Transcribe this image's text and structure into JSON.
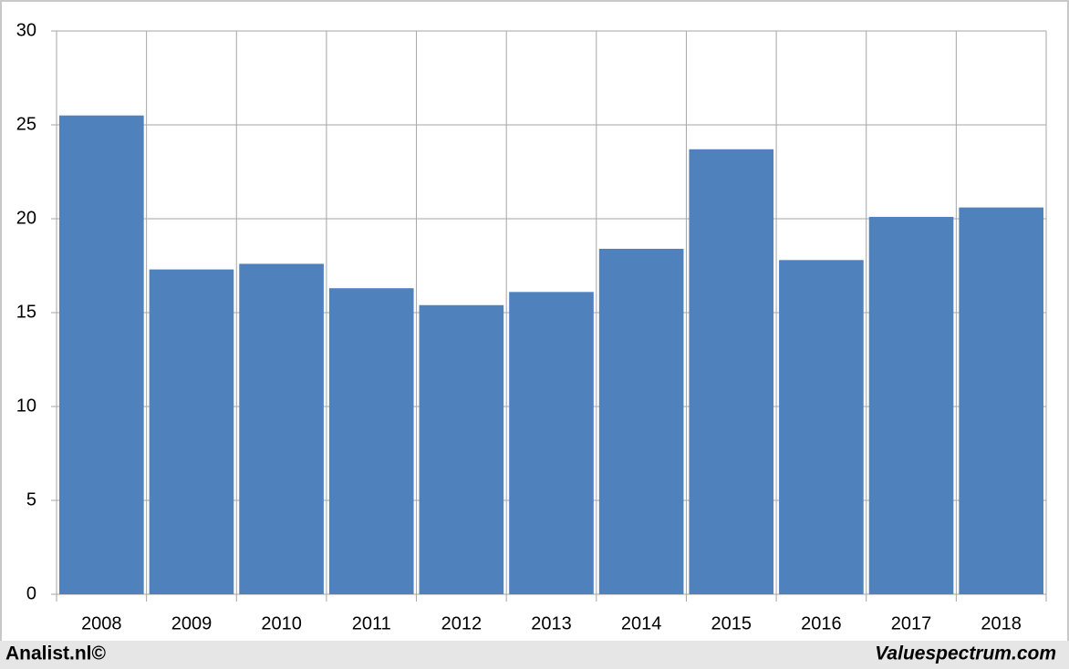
{
  "chart_data": {
    "type": "bar",
    "categories": [
      "2008",
      "2009",
      "2010",
      "2011",
      "2012",
      "2013",
      "2014",
      "2015",
      "2016",
      "2017",
      "2018"
    ],
    "values": [
      25.5,
      17.3,
      17.6,
      16.3,
      15.4,
      16.1,
      18.4,
      23.7,
      17.8,
      20.1,
      20.6
    ],
    "color": "#4f81bd",
    "ylim": [
      0,
      30
    ],
    "yticks": [
      0,
      5,
      10,
      15,
      20,
      25,
      30
    ],
    "grid": true,
    "footer_left": "Analist.nl©",
    "footer_right": "Valuespectrum.com"
  }
}
